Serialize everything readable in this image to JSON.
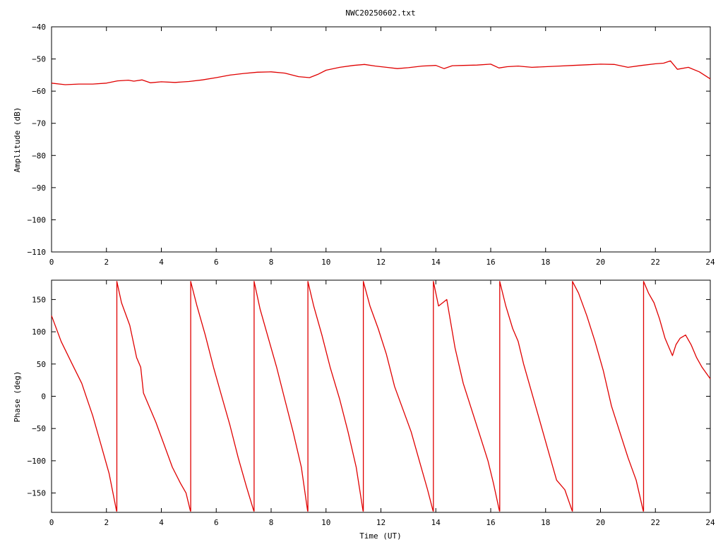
{
  "title": "NWC20250602.txt",
  "colors": {
    "series": "#e00000",
    "frame": "#000000",
    "background": "#ffffff"
  },
  "chart_data": [
    {
      "type": "line",
      "title": "NWC20250602.txt",
      "xlabel": "",
      "ylabel": "Amplitude (dB)",
      "xlim": [
        0,
        24
      ],
      "ylim": [
        -110,
        -40
      ],
      "xticks": [
        "0",
        "2",
        "4",
        "6",
        "8",
        "10",
        "12",
        "14",
        "16",
        "18",
        "20",
        "22",
        "24"
      ],
      "yticks": [
        "-40",
        "-50",
        "-60",
        "-70",
        "-80",
        "-90",
        "-100",
        "-110"
      ],
      "grid": false,
      "series": [
        {
          "x": [
            0,
            0.5,
            1,
            1.5,
            2,
            2.4,
            2.8,
            3,
            3.3,
            3.6,
            4,
            4.5,
            5,
            5.5,
            6,
            6.5,
            7,
            7.5,
            8,
            8.5,
            9,
            9.4,
            9.7,
            10,
            10.5,
            11,
            11.4,
            11.8,
            12.2,
            12.6,
            13,
            13.5,
            14,
            14.3,
            14.6,
            15,
            15.5,
            16,
            16.3,
            16.6,
            17,
            17.5,
            18,
            18.5,
            19,
            19.5,
            20,
            20.5,
            21,
            21.5,
            22,
            22.3,
            22.55,
            22.8,
            23.2,
            23.6,
            24
          ],
          "values": [
            -57.5,
            -58.0,
            -57.8,
            -57.8,
            -57.5,
            -56.8,
            -56.6,
            -56.9,
            -56.5,
            -57.4,
            -57.1,
            -57.3,
            -57.0,
            -56.5,
            -55.8,
            -55.0,
            -54.5,
            -54.1,
            -54.0,
            -54.4,
            -55.5,
            -55.8,
            -54.8,
            -53.5,
            -52.6,
            -52.0,
            -51.7,
            -52.2,
            -52.6,
            -53.0,
            -52.7,
            -52.2,
            -52.0,
            -53.0,
            -52.1,
            -52.0,
            -51.9,
            -51.6,
            -52.8,
            -52.4,
            -52.2,
            -52.6,
            -52.4,
            -52.2,
            -52.0,
            -51.8,
            -51.6,
            -51.7,
            -52.6,
            -52.0,
            -51.5,
            -51.3,
            -50.6,
            -53.2,
            -52.6,
            -54.0,
            -56.2
          ]
        }
      ]
    },
    {
      "type": "line",
      "title": "",
      "xlabel": "Time (UT)",
      "ylabel": "Phase (deg)",
      "xlim": [
        0,
        24
      ],
      "ylim": [
        -180,
        180
      ],
      "xticks": [
        "0",
        "2",
        "4",
        "6",
        "8",
        "10",
        "12",
        "14",
        "16",
        "18",
        "20",
        "22",
        "24"
      ],
      "yticks": [
        "150",
        "100",
        "50",
        "0",
        "-50",
        "-100",
        "-150"
      ],
      "grid": false,
      "series": [
        {
          "x": [
            0,
            0.35,
            0.75,
            1.1,
            1.3,
            1.5,
            1.8,
            2.1,
            2.37,
            2.38,
            2.38,
            2.55,
            2.85,
            3.1,
            3.25,
            3.35,
            3.6,
            3.8,
            4.1,
            4.4,
            4.7,
            4.9,
            5.06,
            5.07,
            5.07,
            5.3,
            5.6,
            5.9,
            6.2,
            6.5,
            6.8,
            7.1,
            7.37,
            7.38,
            7.38,
            7.6,
            7.9,
            8.2,
            8.5,
            8.8,
            9.1,
            9.33,
            9.34,
            9.34,
            9.55,
            9.85,
            10.15,
            10.5,
            10.8,
            11.1,
            11.35,
            11.36,
            11.36,
            11.6,
            11.9,
            12.2,
            12.5,
            12.8,
            13.1,
            13.4,
            13.7,
            13.9,
            13.91,
            13.91,
            14.1,
            14.25,
            14.4,
            14.5,
            14.7,
            15.0,
            15.3,
            15.6,
            15.9,
            16.1,
            16.32,
            16.33,
            16.33,
            16.55,
            16.8,
            17.0,
            17.2,
            17.5,
            17.8,
            18.1,
            18.4,
            18.7,
            18.97,
            18.98,
            18.98,
            19.2,
            19.5,
            19.8,
            20.1,
            20.4,
            20.7,
            21.0,
            21.3,
            21.56,
            21.57,
            21.57,
            21.75,
            21.95,
            22.15,
            22.35,
            22.5,
            22.62,
            22.75,
            22.9,
            23.1,
            23.3,
            23.5,
            23.7,
            24
          ],
          "values": [
            125,
            85,
            50,
            20,
            -5,
            -30,
            -75,
            -120,
            -178,
            -178,
            178,
            145,
            110,
            60,
            45,
            5,
            -20,
            -40,
            -75,
            -110,
            -135,
            -150,
            -178,
            -178,
            178,
            140,
            95,
            45,
            0,
            -45,
            -95,
            -140,
            -178,
            -178,
            178,
            135,
            90,
            45,
            -5,
            -55,
            -110,
            -178,
            -178,
            178,
            140,
            95,
            45,
            -5,
            -55,
            -110,
            -178,
            -178,
            178,
            140,
            105,
            65,
            15,
            -20,
            -55,
            -100,
            -145,
            -178,
            -178,
            178,
            140,
            145,
            150,
            125,
            75,
            20,
            -20,
            -60,
            -100,
            -135,
            -178,
            -178,
            178,
            140,
            105,
            85,
            50,
            5,
            -40,
            -85,
            -130,
            -145,
            -178,
            -178,
            178,
            160,
            125,
            85,
            40,
            -15,
            -55,
            -95,
            -130,
            -178,
            -178,
            178,
            160,
            145,
            120,
            90,
            75,
            63,
            80,
            90,
            95,
            80,
            60,
            45,
            27
          ]
        }
      ]
    }
  ]
}
